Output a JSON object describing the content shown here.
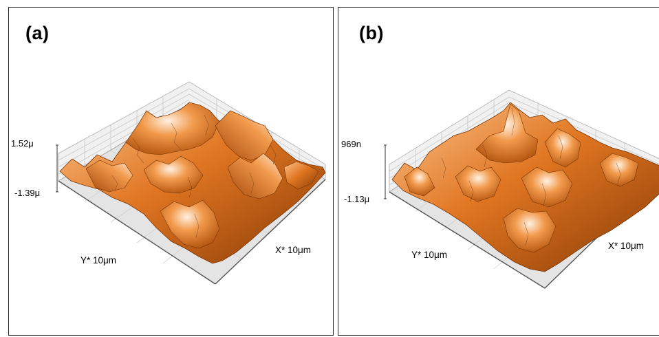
{
  "panels": [
    {
      "label": "(a)",
      "z_max": "1.52μ",
      "z_min": "-1.39μ",
      "y_axis": "Y* 10μm",
      "x_axis": "X* 10μm"
    },
    {
      "label": "(b)",
      "z_max": "969n",
      "z_min": "-1.13μ",
      "y_axis": "Y* 10μm",
      "x_axis": "X* 10μm"
    }
  ],
  "colors": {
    "surface_dark": "#8a3c06",
    "surface_mid": "#e07622",
    "surface_light": "#fbc48e",
    "highlight": "#fff1e2",
    "floor": "#e4e4e4",
    "wall": "#f1f1f1",
    "grid": "#c8c8c8"
  }
}
